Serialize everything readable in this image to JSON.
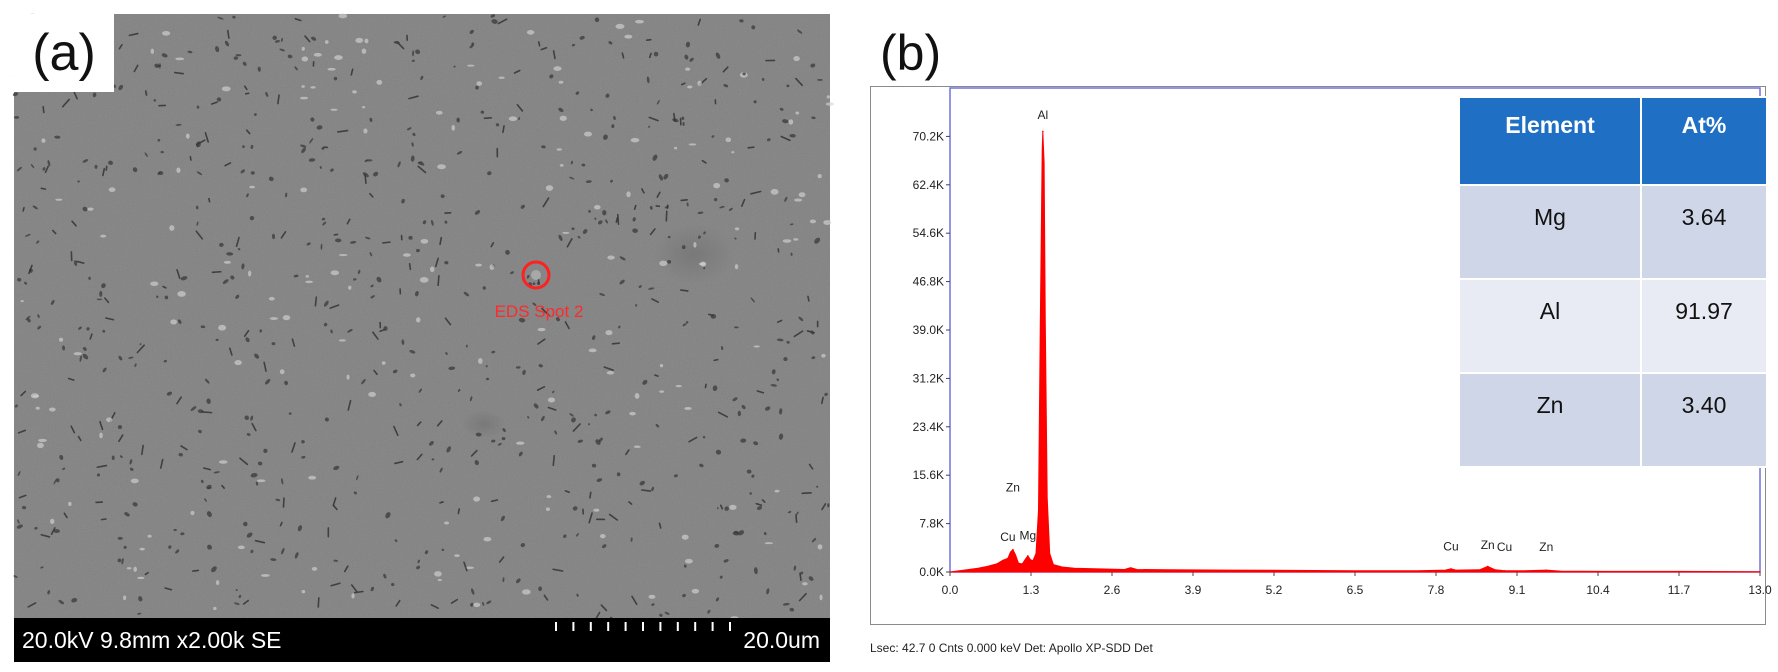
{
  "panel_a": {
    "label": "(a)",
    "spot_label": "EDS Spot 2",
    "info": "20.0kV 9.8mm x2.00k SE",
    "scale": "20.0um"
  },
  "panel_b": {
    "label": "(b)",
    "footer": "Lsec: 42.7 0 Cnts  0.000 keV Det: Apollo XP-SDD Det",
    "table": {
      "headers": [
        "Element",
        "At%"
      ],
      "rows": [
        {
          "element": "Mg",
          "value": "3.64"
        },
        {
          "element": "Al",
          "value": "91.97"
        },
        {
          "element": "Zn",
          "value": "3.40"
        }
      ]
    }
  },
  "chart_data": {
    "type": "line",
    "title": "",
    "xlabel": "",
    "ylabel": "",
    "x_ticks": [
      "0.0",
      "1.3",
      "2.6",
      "3.9",
      "5.2",
      "6.5",
      "7.8",
      "9.1",
      "10.4",
      "11.7",
      "13.0"
    ],
    "y_ticks": [
      "0.0K",
      "7.8K",
      "15.6K",
      "23.4K",
      "31.2K",
      "39.0K",
      "46.8K",
      "54.6K",
      "62.4K",
      "70.2K"
    ],
    "xlim": [
      0,
      13.0
    ],
    "ylim": [
      0,
      78.0
    ],
    "series_color": "#ff0000",
    "peaks": [
      {
        "label": "Zn",
        "x": 1.01,
        "y": 3.6
      },
      {
        "label": "Cu",
        "x": 0.93,
        "y": 2.2
      },
      {
        "label": "Mg",
        "x": 1.25,
        "y": 2.6
      },
      {
        "label": "Al",
        "x": 1.49,
        "y": 71.0
      },
      {
        "label": "Cu",
        "x": 8.04,
        "y": 0.5
      },
      {
        "label": "Zn",
        "x": 8.63,
        "y": 0.9
      },
      {
        "label": "Cu",
        "x": 8.9,
        "y": 0.2
      },
      {
        "label": "Zn",
        "x": 9.57,
        "y": 0.3
      }
    ],
    "peak_label_positions": [
      {
        "label": "Al",
        "x": 1.49,
        "y": 73.0
      },
      {
        "label": "Zn",
        "x": 1.01,
        "y": 13.0
      },
      {
        "label": "Cu",
        "x": 0.93,
        "y": 5.0
      },
      {
        "label": "Mg",
        "x": 1.25,
        "y": 5.2
      },
      {
        "label": "Cu",
        "x": 8.04,
        "y": 3.5
      },
      {
        "label": "Zn",
        "x": 8.63,
        "y": 3.7
      },
      {
        "label": "Cu",
        "x": 8.9,
        "y": 3.4
      },
      {
        "label": "Zn",
        "x": 9.57,
        "y": 3.4
      }
    ],
    "spectrum": [
      [
        0.0,
        0.0
      ],
      [
        0.15,
        0.2
      ],
      [
        0.3,
        0.4
      ],
      [
        0.45,
        0.6
      ],
      [
        0.6,
        0.9
      ],
      [
        0.75,
        1.3
      ],
      [
        0.85,
        1.9
      ],
      [
        0.93,
        2.2
      ],
      [
        0.97,
        3.2
      ],
      [
        1.01,
        3.6
      ],
      [
        1.05,
        2.8
      ],
      [
        1.1,
        1.4
      ],
      [
        1.16,
        1.3
      ],
      [
        1.22,
        2.2
      ],
      [
        1.25,
        2.6
      ],
      [
        1.29,
        2.0
      ],
      [
        1.33,
        1.8
      ],
      [
        1.38,
        3.0
      ],
      [
        1.42,
        10.0
      ],
      [
        1.45,
        40.0
      ],
      [
        1.48,
        68.0
      ],
      [
        1.49,
        71.0
      ],
      [
        1.51,
        66.0
      ],
      [
        1.53,
        40.0
      ],
      [
        1.56,
        12.0
      ],
      [
        1.6,
        3.0
      ],
      [
        1.66,
        1.2
      ],
      [
        1.8,
        0.8
      ],
      [
        2.0,
        0.6
      ],
      [
        2.4,
        0.5
      ],
      [
        2.8,
        0.4
      ],
      [
        2.9,
        0.7
      ],
      [
        3.0,
        0.4
      ],
      [
        3.5,
        0.35
      ],
      [
        4.5,
        0.3
      ],
      [
        5.5,
        0.25
      ],
      [
        6.5,
        0.2
      ],
      [
        7.5,
        0.2
      ],
      [
        7.95,
        0.3
      ],
      [
        8.04,
        0.5
      ],
      [
        8.12,
        0.3
      ],
      [
        8.5,
        0.35
      ],
      [
        8.63,
        0.9
      ],
      [
        8.75,
        0.35
      ],
      [
        8.9,
        0.2
      ],
      [
        9.2,
        0.2
      ],
      [
        9.57,
        0.3
      ],
      [
        9.8,
        0.15
      ],
      [
        10.5,
        0.1
      ],
      [
        11.7,
        0.1
      ],
      [
        13.0,
        0.05
      ]
    ]
  }
}
